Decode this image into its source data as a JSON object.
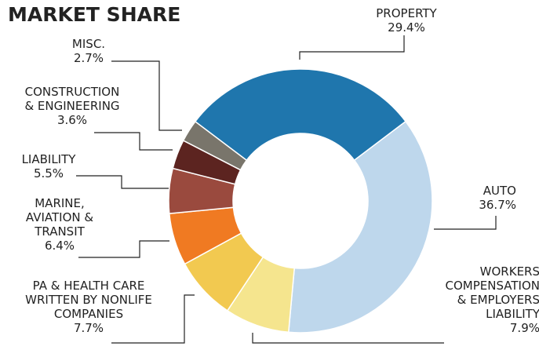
{
  "chart_data": {
    "type": "donut",
    "title": "MARKET SHARE",
    "categories": [
      "PROPERTY",
      "AUTO",
      "WORKERS\nCOMPENSATION\n& EMPLOYERS\nLIABILITY",
      "PA & HEALTH CARE\nWRITTEN BY NONLIFE\nCOMPANIES",
      "MARINE,\nAVIATION &\nTRANSIT",
      "LIABILITY",
      "CONSTRUCTION\n& ENGINEERING",
      "MISC."
    ],
    "values": [
      29.4,
      36.7,
      7.9,
      7.7,
      6.4,
      5.5,
      3.6,
      2.7
    ],
    "value_labels": [
      "29.4%",
      "36.7%",
      "7.9%",
      "7.7%",
      "6.4%",
      "5.5%",
      "3.6%",
      "2.7%"
    ],
    "colors": [
      "#1f76ad",
      "#bed7ec",
      "#f5e58e",
      "#f2c950",
      "#f07a22",
      "#9a4a3e",
      "#5c2420",
      "#79756b"
    ]
  }
}
